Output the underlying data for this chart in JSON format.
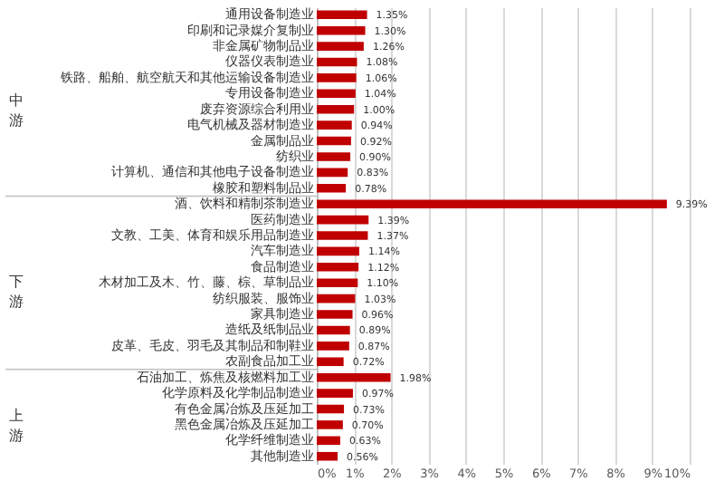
{
  "chart_data": {
    "type": "bar",
    "orientation": "horizontal",
    "color": "#c00000",
    "grid": "x",
    "categories": [
      "通用设备制造业",
      "印刷和记录媒介复制业",
      "非金属矿物制品业",
      "仪器仪表制造业",
      "铁路、船舶、航空航天和其他运输设备制造业",
      "专用设备制造业",
      "废弃资源综合利用业",
      "电气机械及器材制造业",
      "金属制品业",
      "纺织业",
      "计算机、通信和其他电子设备制造业",
      "橡胶和塑料制品业",
      "酒、饮料和精制茶制造业",
      "医药制造业",
      "文教、工美、体育和娱乐用品制造业",
      "汽车制造业",
      "食品制造业",
      "木材加工及木、竹、藤、棕、草制品业",
      "纺织服装、服饰业",
      "家具制造业",
      "造纸及纸制品业",
      "皮革、毛皮、羽毛及其制品和制鞋业",
      "农副食品加工业",
      "石油加工、炼焦及核燃料加工业",
      "化学原料及化学制品制造业",
      "有色金属冶炼及压延加工",
      "黑色金属冶炼及压延加工",
      "化学纤维制造业",
      "其他制造业"
    ],
    "values": [
      1.35,
      1.3,
      1.26,
      1.08,
      1.06,
      1.04,
      1.0,
      0.94,
      0.92,
      0.9,
      0.83,
      0.78,
      9.39,
      1.39,
      1.37,
      1.14,
      1.12,
      1.1,
      1.03,
      0.96,
      0.89,
      0.87,
      0.72,
      1.98,
      0.97,
      0.73,
      0.7,
      0.63,
      0.56
    ],
    "value_labels": [
      "1.35%",
      "1.30%",
      "1.26%",
      "1.08%",
      "1.06%",
      "1.04%",
      "1.00%",
      "0.94%",
      "0.92%",
      "0.90%",
      "0.83%",
      "0.78%",
      "9.39%",
      "1.39%",
      "1.37%",
      "1.14%",
      "1.12%",
      "1.10%",
      "1.03%",
      "0.96%",
      "0.89%",
      "0.87%",
      "0.72%",
      "1.98%",
      "0.97%",
      "0.73%",
      "0.70%",
      "0.63%",
      "0.56%"
    ],
    "xlim": [
      0,
      10
    ],
    "xticks": [
      {
        "value": 0,
        "label": "0%"
      },
      {
        "value": 1,
        "label": "1%"
      },
      {
        "value": 2,
        "label": "2%"
      },
      {
        "value": 3,
        "label": "3%"
      },
      {
        "value": 4,
        "label": "4%"
      },
      {
        "value": 5,
        "label": "5%"
      },
      {
        "value": 6,
        "label": "6%"
      },
      {
        "value": 7,
        "label": "7%"
      },
      {
        "value": 8,
        "label": "8%"
      },
      {
        "value": 9,
        "label": "9%"
      },
      {
        "value": 10,
        "label": "10%"
      }
    ],
    "annotations": [
      "中游",
      "下游",
      "上游"
    ]
  }
}
